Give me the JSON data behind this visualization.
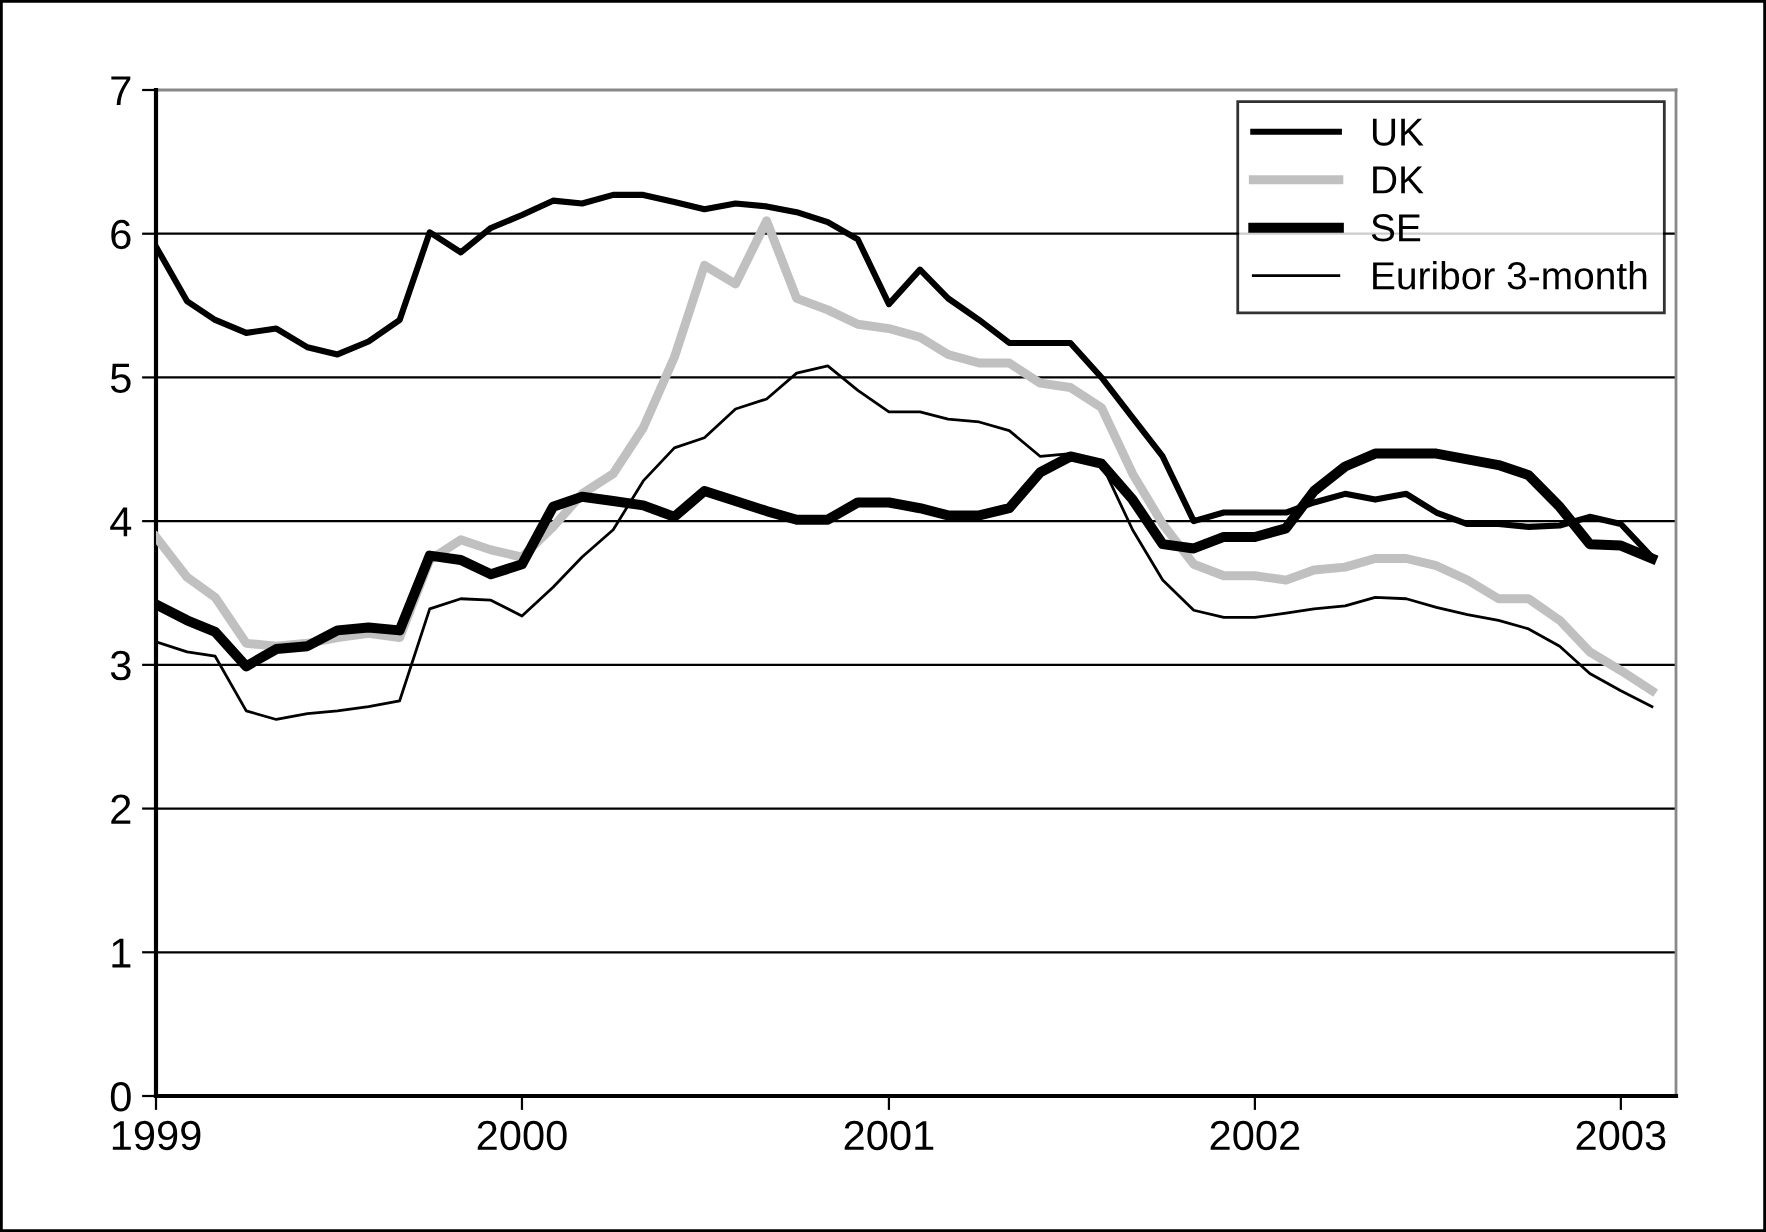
{
  "chart_data": {
    "type": "line",
    "x": [
      "1999-01",
      "1999-02",
      "1999-03",
      "1999-04",
      "1999-05",
      "1999-06",
      "1999-07",
      "1999-08",
      "1999-09",
      "1999-10",
      "1999-11",
      "1999-12",
      "2000-01",
      "2000-02",
      "2000-03",
      "2000-04",
      "2000-05",
      "2000-06",
      "2000-07",
      "2000-08",
      "2000-09",
      "2000-10",
      "2000-11",
      "2000-12",
      "2001-01",
      "2001-02",
      "2001-03",
      "2001-04",
      "2001-05",
      "2001-06",
      "2001-07",
      "2001-08",
      "2001-09",
      "2001-10",
      "2001-11",
      "2001-12",
      "2002-01",
      "2002-02",
      "2002-03",
      "2002-04",
      "2002-05",
      "2002-06",
      "2002-07",
      "2002-08",
      "2002-09",
      "2002-10",
      "2002-11",
      "2002-12",
      "2003-01",
      "2003-02"
    ],
    "series": [
      {
        "name": "UK",
        "color": "#000000",
        "values": [
          5.91,
          5.53,
          5.4,
          5.31,
          5.34,
          5.21,
          5.16,
          5.25,
          5.4,
          6.01,
          5.87,
          6.04,
          6.13,
          6.23,
          6.21,
          6.27,
          6.27,
          6.22,
          6.17,
          6.21,
          6.19,
          6.15,
          6.08,
          5.96,
          5.51,
          5.75,
          5.55,
          5.4,
          5.24,
          5.24,
          5.24,
          5.0,
          4.72,
          4.45,
          4.0,
          4.06,
          4.06,
          4.06,
          4.13,
          4.19,
          4.15,
          4.19,
          4.06,
          3.98,
          3.98,
          3.96,
          3.97,
          4.03,
          3.98,
          3.75
        ]
      },
      {
        "name": "DK",
        "color": "#c0c0c0",
        "values": [
          3.89,
          3.61,
          3.47,
          3.15,
          3.13,
          3.15,
          3.19,
          3.22,
          3.19,
          3.73,
          3.87,
          3.8,
          3.75,
          3.96,
          4.19,
          4.33,
          4.65,
          5.14,
          5.78,
          5.65,
          6.09,
          5.55,
          5.47,
          5.37,
          5.34,
          5.28,
          5.16,
          5.1,
          5.1,
          4.96,
          4.93,
          4.79,
          4.33,
          3.98,
          3.7,
          3.62,
          3.62,
          3.59,
          3.66,
          3.68,
          3.74,
          3.74,
          3.69,
          3.59,
          3.46,
          3.46,
          3.31,
          3.09,
          2.96,
          2.82
        ]
      },
      {
        "name": "SE",
        "color": "#000000",
        "values": [
          3.42,
          3.31,
          3.23,
          2.99,
          3.11,
          3.13,
          3.24,
          3.26,
          3.24,
          3.76,
          3.73,
          3.63,
          3.7,
          4.1,
          4.17,
          4.14,
          4.11,
          4.03,
          4.21,
          4.14,
          4.07,
          4.01,
          4.01,
          4.13,
          4.13,
          4.09,
          4.04,
          4.04,
          4.09,
          4.34,
          4.45,
          4.4,
          4.15,
          3.84,
          3.81,
          3.89,
          3.89,
          3.95,
          4.21,
          4.38,
          4.47,
          4.47,
          4.47,
          4.43,
          4.39,
          4.32,
          4.1,
          3.84,
          3.83,
          3.74
        ]
      },
      {
        "name": "Euribor 3-month",
        "color": "#000000",
        "values": [
          3.16,
          3.09,
          3.06,
          2.68,
          2.62,
          2.66,
          2.68,
          2.71,
          2.75,
          3.39,
          3.46,
          3.45,
          3.34,
          3.54,
          3.75,
          3.94,
          4.28,
          4.51,
          4.58,
          4.78,
          4.85,
          5.03,
          5.08,
          4.91,
          4.76,
          4.76,
          4.71,
          4.69,
          4.63,
          4.45,
          4.47,
          4.4,
          3.94,
          3.59,
          3.38,
          3.33,
          3.33,
          3.36,
          3.39,
          3.41,
          3.47,
          3.46,
          3.4,
          3.35,
          3.31,
          3.25,
          3.13,
          2.94,
          2.82,
          2.71
        ]
      }
    ],
    "xlim": [
      "1999-01-01",
      "2003-02-25"
    ],
    "xticks": [
      "1999",
      "2000",
      "2001",
      "2002",
      "2003"
    ],
    "ylim": [
      0,
      7
    ],
    "yticks": [
      0,
      1,
      2,
      3,
      4,
      5,
      6,
      7
    ],
    "grid": "y",
    "legend": "top right",
    "marker": "none",
    "line_style": "solid"
  }
}
